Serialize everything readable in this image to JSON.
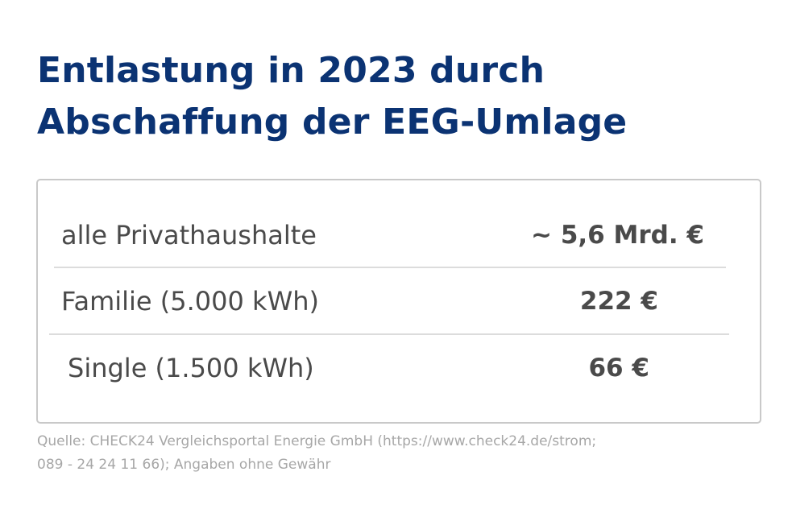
{
  "title": {
    "line1": "Entlastung in 2023 durch",
    "line2": "Abschaffung der EEG-Umlage"
  },
  "rows": [
    {
      "label": "alle Privathaushalte",
      "value": "~ 5,6 Mrd. €"
    },
    {
      "label": "Familie (5.000 kWh)",
      "value": "222 €"
    },
    {
      "label": "Single (1.500 kWh)",
      "value": "66 €"
    }
  ],
  "source": {
    "line1": "Quelle: CHECK24 Vergleichsportal Energie GmbH (https://www.check24.de/strom;",
    "line2": "089 - 24 24 11 66); Angaben ohne Gewähr"
  },
  "colors": {
    "title": "#0b3373",
    "text": "#4a4a4a",
    "source": "#a7a7a7",
    "border": "#c9c9c9",
    "divider": "#dcdcdc"
  }
}
